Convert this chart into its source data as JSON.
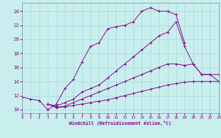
{
  "xlabel": "Windchill (Refroidissement éolien,°C)",
  "bg_color": "#c8eeee",
  "grid_color": "#a8d8d8",
  "line_color": "#880088",
  "tick_color": "#880088",
  "xlim": [
    0,
    23
  ],
  "ylim": [
    9.5,
    25.2
  ],
  "xticks": [
    0,
    1,
    2,
    3,
    4,
    5,
    6,
    7,
    8,
    9,
    10,
    11,
    12,
    13,
    14,
    15,
    16,
    17,
    18,
    19,
    20,
    21,
    22,
    23
  ],
  "yticks": [
    10,
    12,
    14,
    16,
    18,
    20,
    22,
    24
  ],
  "lines": [
    {
      "x": [
        0,
        1,
        2,
        3,
        4,
        5,
        6,
        7,
        8,
        9,
        10,
        11,
        12,
        13,
        14,
        15,
        16,
        17,
        18,
        19
      ],
      "y": [
        11.8,
        11.5,
        11.3,
        10.0,
        10.8,
        13.0,
        14.3,
        16.8,
        19.0,
        19.5,
        21.5,
        21.8,
        22.0,
        22.5,
        24.0,
        24.5,
        24.0,
        24.0,
        23.5,
        19.5
      ]
    },
    {
      "x": [
        3,
        4,
        5,
        6,
        7,
        8,
        9,
        10,
        11,
        12,
        13,
        14,
        15,
        16,
        17,
        18,
        19,
        20,
        21,
        22,
        23
      ],
      "y": [
        10.8,
        10.5,
        11.0,
        11.5,
        12.5,
        13.0,
        13.5,
        14.5,
        15.5,
        16.5,
        17.5,
        18.5,
        19.5,
        20.5,
        21.0,
        22.5,
        19.0,
        16.5,
        15.0,
        15.0,
        14.0
      ]
    },
    {
      "x": [
        3,
        4,
        5,
        6,
        7,
        8,
        9,
        10,
        11,
        12,
        13,
        14,
        15,
        16,
        17,
        18,
        19,
        20,
        21,
        22,
        23
      ],
      "y": [
        10.8,
        10.3,
        10.5,
        11.0,
        11.5,
        12.0,
        12.5,
        13.0,
        13.5,
        14.0,
        14.5,
        15.0,
        15.5,
        16.0,
        16.5,
        16.5,
        16.3,
        16.5,
        15.0,
        15.0,
        15.0
      ]
    },
    {
      "x": [
        3,
        4,
        5,
        6,
        7,
        8,
        9,
        10,
        11,
        12,
        13,
        14,
        15,
        16,
        17,
        18,
        19,
        20,
        21,
        22,
        23
      ],
      "y": [
        10.8,
        10.3,
        10.4,
        10.6,
        10.8,
        11.0,
        11.2,
        11.4,
        11.7,
        12.0,
        12.3,
        12.6,
        12.9,
        13.2,
        13.5,
        13.7,
        13.9,
        14.0,
        14.0,
        14.0,
        14.0
      ]
    }
  ]
}
